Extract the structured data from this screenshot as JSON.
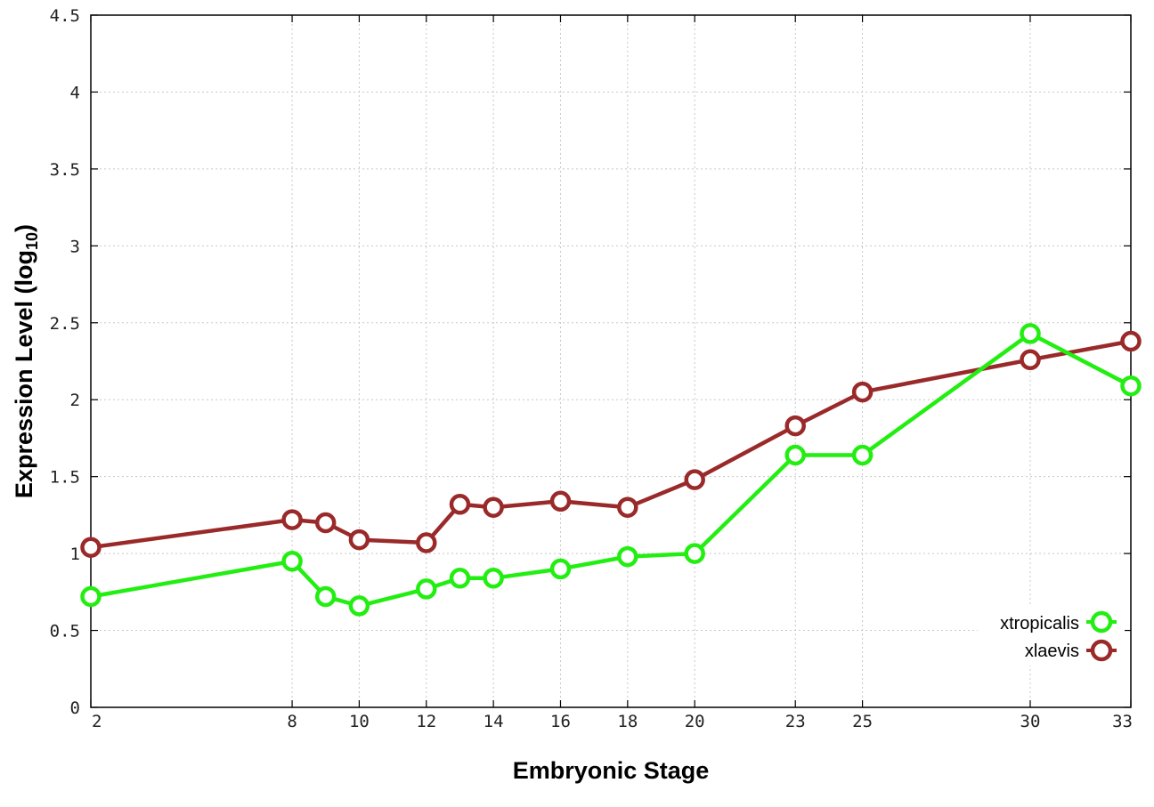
{
  "chart_data": {
    "type": "line",
    "title": "",
    "xlabel": "Embryonic Stage",
    "ylabel": "Expression Level (log",
    "ylabel_subscript": "10",
    "ylabel_suffix": ")",
    "xlim": [
      2,
      33
    ],
    "ylim": [
      0,
      4.5
    ],
    "x_ticks": [
      2,
      8,
      10,
      12,
      14,
      16,
      18,
      20,
      23,
      25,
      30,
      33
    ],
    "y_ticks": [
      "0",
      "0.5",
      "1",
      "1.5",
      "2",
      "2.5",
      "3",
      "3.5",
      "4",
      "4.5"
    ],
    "grid": true,
    "legend_position": "bottom-right",
    "series": [
      {
        "name": "xtropicalis",
        "color": "#22ee11",
        "x": [
          2,
          8,
          9,
          10,
          12,
          13,
          14,
          16,
          18,
          20,
          23,
          25,
          30,
          33
        ],
        "y": [
          0.72,
          0.95,
          0.72,
          0.66,
          0.77,
          0.84,
          0.84,
          0.9,
          0.98,
          1.0,
          1.64,
          1.64,
          2.43,
          2.09
        ]
      },
      {
        "name": "xlaevis",
        "color": "#9a2a2a",
        "x": [
          2,
          8,
          9,
          10,
          12,
          13,
          14,
          16,
          18,
          20,
          23,
          25,
          30,
          33
        ],
        "y": [
          1.04,
          1.22,
          1.2,
          1.09,
          1.07,
          1.32,
          1.3,
          1.34,
          1.3,
          1.48,
          1.83,
          2.05,
          2.26,
          2.38
        ]
      }
    ]
  }
}
